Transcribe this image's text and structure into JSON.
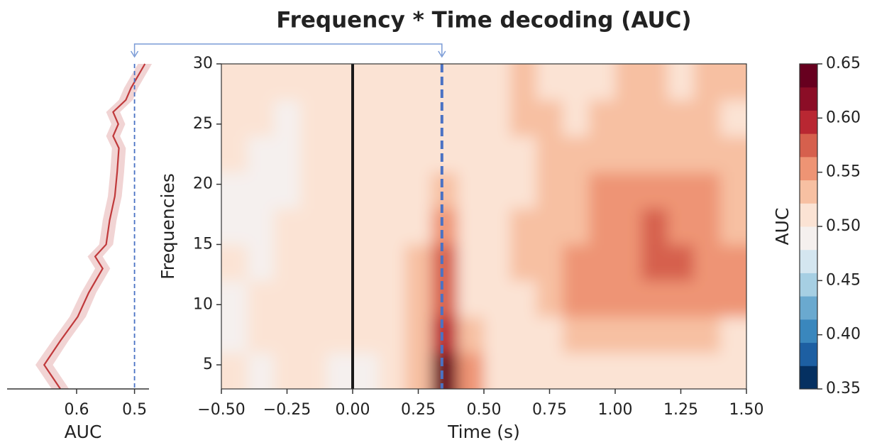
{
  "chart_data": [
    {
      "type": "heatmap",
      "title": "Frequency * Time decoding (AUC)",
      "x_label": "Time (s)",
      "y_label": "Frequencies",
      "x": [
        -0.45,
        -0.35,
        -0.25,
        -0.15,
        -0.05,
        0.05,
        0.15,
        0.25,
        0.35,
        0.45,
        0.55,
        0.65,
        0.75,
        0.85,
        0.95,
        1.05,
        1.15,
        1.25,
        1.35,
        1.45
      ],
      "y": [
        4.5,
        7.5,
        10.5,
        13.5,
        16.5,
        19.5,
        22.5,
        25.5,
        28.5
      ],
      "values": [
        [
          0.5,
          0.49,
          0.5,
          0.5,
          0.49,
          0.49,
          0.51,
          0.54,
          0.64,
          0.55,
          0.51,
          0.51,
          0.52,
          0.51,
          0.52,
          0.52,
          0.51,
          0.52,
          0.52,
          0.51
        ],
        [
          0.49,
          0.5,
          0.51,
          0.5,
          0.5,
          0.5,
          0.51,
          0.54,
          0.6,
          0.53,
          0.52,
          0.52,
          0.52,
          0.53,
          0.53,
          0.53,
          0.53,
          0.53,
          0.53,
          0.52
        ],
        [
          0.49,
          0.5,
          0.51,
          0.51,
          0.5,
          0.5,
          0.51,
          0.53,
          0.57,
          0.52,
          0.52,
          0.52,
          0.53,
          0.55,
          0.55,
          0.56,
          0.55,
          0.56,
          0.56,
          0.56
        ],
        [
          0.5,
          0.49,
          0.5,
          0.51,
          0.5,
          0.5,
          0.51,
          0.53,
          0.57,
          0.52,
          0.52,
          0.53,
          0.54,
          0.56,
          0.56,
          0.55,
          0.57,
          0.58,
          0.56,
          0.55
        ],
        [
          0.49,
          0.49,
          0.5,
          0.5,
          0.5,
          0.5,
          0.51,
          0.52,
          0.55,
          0.52,
          0.52,
          0.53,
          0.53,
          0.54,
          0.55,
          0.56,
          0.57,
          0.56,
          0.55,
          0.54
        ],
        [
          0.49,
          0.49,
          0.49,
          0.5,
          0.5,
          0.5,
          0.51,
          0.52,
          0.53,
          0.52,
          0.52,
          0.52,
          0.53,
          0.53,
          0.55,
          0.55,
          0.56,
          0.56,
          0.55,
          0.54
        ],
        [
          0.5,
          0.49,
          0.49,
          0.5,
          0.5,
          0.5,
          0.51,
          0.51,
          0.52,
          0.52,
          0.52,
          0.52,
          0.53,
          0.54,
          0.54,
          0.54,
          0.54,
          0.53,
          0.54,
          0.53
        ],
        [
          0.5,
          0.5,
          0.49,
          0.5,
          0.51,
          0.5,
          0.5,
          0.51,
          0.52,
          0.51,
          0.52,
          0.53,
          0.53,
          0.52,
          0.53,
          0.54,
          0.53,
          0.53,
          0.53,
          0.52
        ],
        [
          0.5,
          0.5,
          0.5,
          0.5,
          0.5,
          0.5,
          0.5,
          0.51,
          0.51,
          0.51,
          0.52,
          0.53,
          0.52,
          0.52,
          0.52,
          0.53,
          0.53,
          0.52,
          0.53,
          0.53
        ]
      ],
      "xlim": [
        -0.5,
        1.5
      ],
      "xticks": [
        {
          "value": -0.5,
          "label": "−0.50"
        },
        {
          "value": -0.25,
          "label": "−0.25"
        },
        {
          "value": 0,
          "label": "0.00"
        },
        {
          "value": 0.25,
          "label": "0.25"
        },
        {
          "value": 0.5,
          "label": "0.50"
        },
        {
          "value": 0.75,
          "label": "0.75"
        },
        {
          "value": 1,
          "label": "1.00"
        },
        {
          "value": 1.25,
          "label": "1.25"
        },
        {
          "value": 1.5,
          "label": "1.50"
        }
      ],
      "ylim": [
        3,
        30
      ],
      "yticks": [
        5,
        10,
        15,
        20,
        25,
        30
      ],
      "vlines": [
        {
          "value": 0,
          "color": "#1a1a1a",
          "style": "solid"
        },
        {
          "value": 0.34,
          "color": "#4a72c4",
          "style": "dashed"
        }
      ]
    },
    {
      "type": "line",
      "x_label": "AUC",
      "color": "#c0393b",
      "y": [
        3,
        5,
        7,
        9,
        11,
        13,
        14,
        15,
        17,
        19,
        21,
        23,
        24,
        25,
        26,
        27,
        28,
        29,
        30
      ],
      "values": [
        0.628,
        0.656,
        0.628,
        0.598,
        0.579,
        0.555,
        0.568,
        0.549,
        0.543,
        0.534,
        0.53,
        0.527,
        0.537,
        0.528,
        0.537,
        0.515,
        0.506,
        0.494,
        0.482
      ],
      "error": [
        0.015,
        0.015,
        0.014,
        0.014,
        0.013,
        0.013,
        0.013,
        0.012,
        0.012,
        0.012,
        0.012,
        0.012,
        0.012,
        0.012,
        0.012,
        0.012,
        0.012,
        0.012,
        0.012
      ],
      "xlim": [
        0.72,
        0.475
      ],
      "xticks": [
        0.6,
        0.5
      ],
      "ylim": [
        3,
        30
      ],
      "refline": {
        "value": 0.5,
        "color": "#4a72c4"
      }
    },
    {
      "type": "colorbar",
      "label": "AUC",
      "ylim": [
        0.35,
        0.65
      ],
      "yticks": [
        0.35,
        {
          "value": 0.4,
          "label": "0.40"
        },
        0.45,
        {
          "value": 0.5,
          "label": "0.50"
        },
        0.55,
        {
          "value": 0.6,
          "label": "0.60"
        },
        0.65
      ],
      "colors": [
        "#053061",
        "#1d5fa2",
        "#3a87bd",
        "#6aa9cf",
        "#a6cfe3",
        "#d4e6f0",
        "#f5f0ee",
        "#fbe3d4",
        "#f7c0a2",
        "#ee9474",
        "#d6604d",
        "#b92732",
        "#8b0d26",
        "#67001f"
      ]
    }
  ]
}
